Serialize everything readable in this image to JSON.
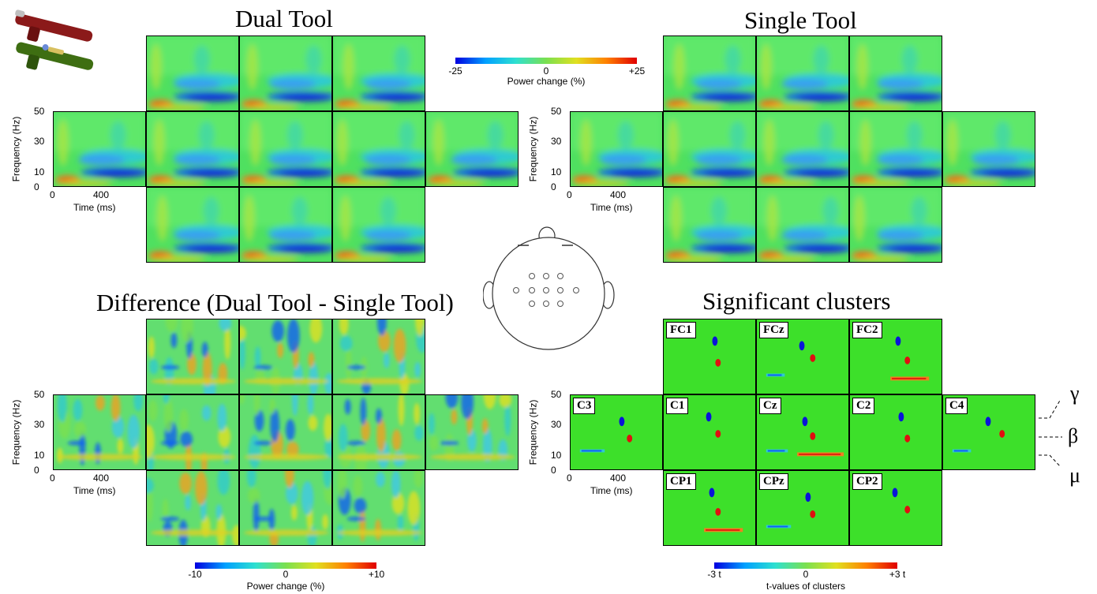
{
  "panels": {
    "dual": {
      "title": "Dual Tool"
    },
    "single": {
      "title": "Single Tool"
    },
    "diff": {
      "title": "Difference (Dual Tool - Single Tool)"
    },
    "sig": {
      "title": "Significant clusters"
    }
  },
  "electrodes": [
    "FC1",
    "FCz",
    "FC2",
    "C3",
    "C1",
    "Cz",
    "C2",
    "C4",
    "CP1",
    "CPz",
    "CP2"
  ],
  "axes": {
    "ylabel": "Frequency (Hz)",
    "xlabel": "Time (ms)",
    "yticks": [
      "50",
      "30",
      "10",
      "0"
    ],
    "xticks": [
      "0",
      "400"
    ]
  },
  "colorbars": {
    "power": {
      "label": "Power change (%)",
      "min": "-25",
      "mid": "0",
      "max": "+25"
    },
    "diff": {
      "label": "Power change (%)",
      "min": "-10",
      "mid": "0",
      "max": "+10"
    },
    "tvals": {
      "label": "t-values of clusters",
      "min": "-3 t",
      "mid": "0",
      "max": "+3 t"
    }
  },
  "bands": {
    "gamma": "γ",
    "beta": "β",
    "mu": "μ"
  },
  "colors": {
    "background": "#ffffff",
    "map_bg": "#3de02a",
    "negative": "#0a14d8",
    "positive": "#e01010"
  }
}
